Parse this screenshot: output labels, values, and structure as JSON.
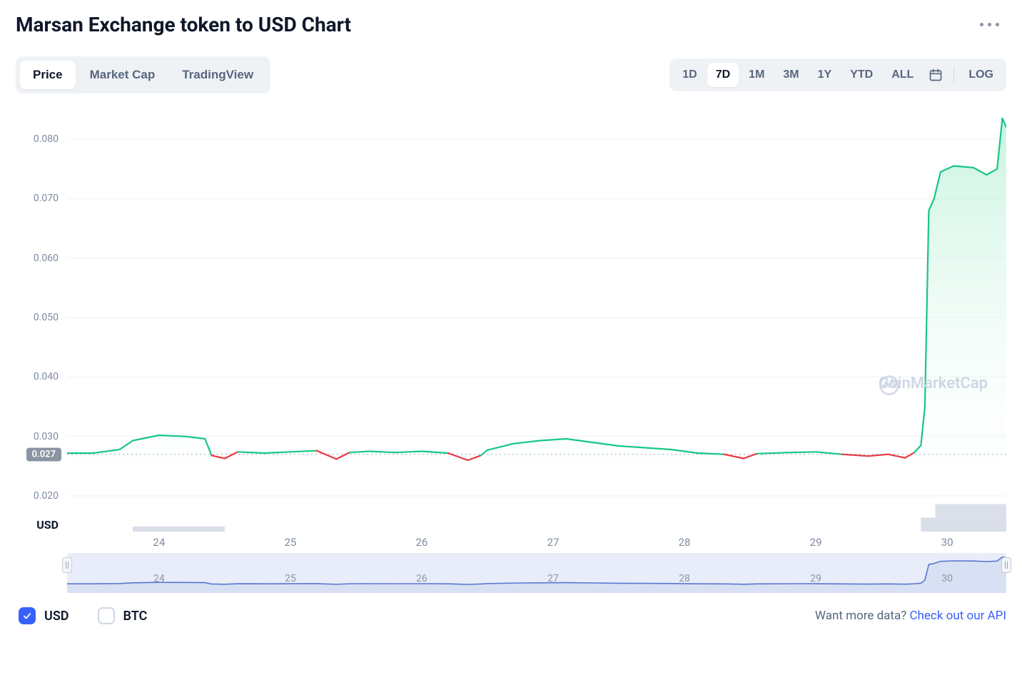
{
  "title": "Marsan Exchange token to USD Chart",
  "tabs": {
    "price": "Price",
    "marketcap": "Market Cap",
    "tradingview": "TradingView",
    "active": "price"
  },
  "ranges": {
    "options": [
      "1D",
      "7D",
      "1M",
      "3M",
      "1Y",
      "YTD",
      "ALL"
    ],
    "active": "7D",
    "log_label": "LOG"
  },
  "watermark": "CoinMarketCap",
  "currencies": {
    "usd": {
      "label": "USD",
      "checked": true
    },
    "btc": {
      "label": "BTC",
      "checked": false
    }
  },
  "api_prompt": "Want more data? ",
  "api_link": "Check out our API",
  "chart": {
    "type": "line-area",
    "y_unit": "USD",
    "y_ticks": [
      0.02,
      0.03,
      0.04,
      0.05,
      0.06,
      0.07,
      0.08
    ],
    "y_domain": [
      0.014,
      0.086
    ],
    "ref_line": 0.027,
    "ref_label": "0.027",
    "x_ticks": [
      24,
      25,
      26,
      27,
      28,
      29,
      30
    ],
    "x_domain": [
      23.3,
      30.45
    ],
    "colors": {
      "up": "#16c784",
      "down": "#ea3943",
      "area_top": "#b7f0d7",
      "area_bottom": "#ffffff",
      "ref_dot": "#9aa4b5",
      "grid": "#eef1f5",
      "volume": "#cfd6e4",
      "navigator_line": "#5976d1",
      "navigator_bg": "#e8edf9",
      "axis_label": "#7d8aa0",
      "pill_bg": "#8b94a3"
    },
    "series": [
      [
        23.3,
        0.0272
      ],
      [
        23.5,
        0.0272
      ],
      [
        23.7,
        0.0278
      ],
      [
        23.8,
        0.0293
      ],
      [
        24.0,
        0.0302
      ],
      [
        24.2,
        0.03
      ],
      [
        24.35,
        0.0296
      ],
      [
        24.4,
        0.0268
      ],
      [
        24.5,
        0.0263
      ],
      [
        24.6,
        0.0274
      ],
      [
        24.8,
        0.0272
      ],
      [
        25.0,
        0.0274
      ],
      [
        25.2,
        0.0276
      ],
      [
        25.35,
        0.0262
      ],
      [
        25.45,
        0.0273
      ],
      [
        25.6,
        0.0275
      ],
      [
        25.8,
        0.0273
      ],
      [
        26.0,
        0.0275
      ],
      [
        26.2,
        0.0272
      ],
      [
        26.35,
        0.026
      ],
      [
        26.45,
        0.0268
      ],
      [
        26.5,
        0.0277
      ],
      [
        26.7,
        0.0288
      ],
      [
        26.9,
        0.0293
      ],
      [
        27.1,
        0.0296
      ],
      [
        27.3,
        0.029
      ],
      [
        27.5,
        0.0284
      ],
      [
        27.7,
        0.0281
      ],
      [
        27.9,
        0.0278
      ],
      [
        28.1,
        0.0272
      ],
      [
        28.3,
        0.027
      ],
      [
        28.45,
        0.0263
      ],
      [
        28.55,
        0.0271
      ],
      [
        28.8,
        0.0273
      ],
      [
        29.0,
        0.0274
      ],
      [
        29.2,
        0.027
      ],
      [
        29.4,
        0.0267
      ],
      [
        29.55,
        0.027
      ],
      [
        29.68,
        0.0264
      ],
      [
        29.75,
        0.0273
      ],
      [
        29.8,
        0.0285
      ],
      [
        29.83,
        0.035
      ],
      [
        29.86,
        0.068
      ],
      [
        29.9,
        0.07
      ],
      [
        29.95,
        0.0745
      ],
      [
        30.05,
        0.0755
      ],
      [
        30.2,
        0.0752
      ],
      [
        30.3,
        0.074
      ],
      [
        30.38,
        0.075
      ],
      [
        30.42,
        0.0835
      ],
      [
        30.45,
        0.082
      ]
    ],
    "volume": [
      [
        23.8,
        0.1,
        0.7
      ],
      [
        29.8,
        0.28,
        0.11
      ],
      [
        29.91,
        0.55,
        0.54
      ]
    ]
  }
}
